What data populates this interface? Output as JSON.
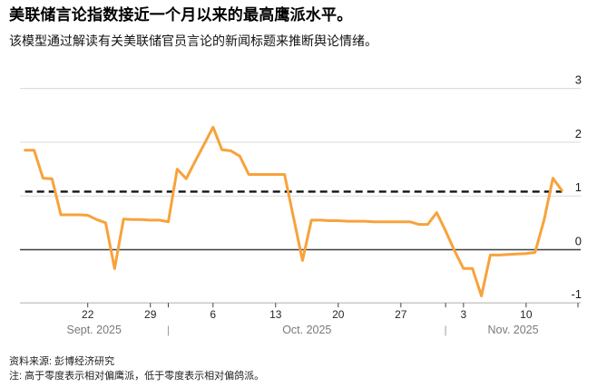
{
  "header": {
    "title": "美联储言论指数接近一个月以来的最高鹰派水平。",
    "subtitle": "该模型通过解读有关美联储官员言论的新闻标题来推断舆论情绪。"
  },
  "footer": {
    "source": "资料来源: 彭博经济研究",
    "note": "注: 高于零度表示相对偏鹰派，低于零度表示相对偏鸽派。"
  },
  "chart_data": {
    "type": "line",
    "title": "美联储言论指数接近一个月以来的最高鹰派水平。",
    "subtitle": "该模型通过解读有关美联储官员言论的新闻标题来推断舆论情绪。",
    "ylim": [
      -1,
      3
    ],
    "y_ticks": [
      3,
      2,
      1,
      0,
      -1
    ],
    "grid": true,
    "zero_line": true,
    "dashed_reference_value": 1.08,
    "start_date": "2025-09-15",
    "end_date": "2025-11-14",
    "frequency": "daily",
    "series": [
      {
        "name": "美联储言论指数",
        "dates": [
          "2025-09-15",
          "2025-09-16",
          "2025-09-17",
          "2025-09-18",
          "2025-09-19",
          "2025-09-20",
          "2025-09-21",
          "2025-09-22",
          "2025-09-23",
          "2025-09-24",
          "2025-09-25",
          "2025-09-26",
          "2025-09-27",
          "2025-09-28",
          "2025-09-29",
          "2025-09-30",
          "2025-10-01",
          "2025-10-02",
          "2025-10-03",
          "2025-10-04",
          "2025-10-05",
          "2025-10-06",
          "2025-10-07",
          "2025-10-08",
          "2025-10-09",
          "2025-10-10",
          "2025-10-11",
          "2025-10-12",
          "2025-10-13",
          "2025-10-14",
          "2025-10-15",
          "2025-10-16",
          "2025-10-17",
          "2025-10-18",
          "2025-10-19",
          "2025-10-20",
          "2025-10-21",
          "2025-10-22",
          "2025-10-23",
          "2025-10-24",
          "2025-10-25",
          "2025-10-26",
          "2025-10-27",
          "2025-10-28",
          "2025-10-29",
          "2025-10-30",
          "2025-10-31",
          "2025-11-01",
          "2025-11-02",
          "2025-11-03",
          "2025-11-04",
          "2025-11-05",
          "2025-11-06",
          "2025-11-07",
          "2025-11-08",
          "2025-11-09",
          "2025-11-10",
          "2025-11-11",
          "2025-11-12",
          "2025-11-13",
          "2025-11-14"
        ],
        "values": [
          1.85,
          1.85,
          1.33,
          1.32,
          0.65,
          0.65,
          0.65,
          0.64,
          0.56,
          0.5,
          -0.35,
          0.57,
          0.56,
          0.56,
          0.55,
          0.55,
          0.52,
          1.5,
          1.32,
          1.64,
          1.96,
          2.28,
          1.86,
          1.84,
          1.74,
          1.4,
          1.4,
          1.4,
          1.4,
          1.4,
          0.6,
          -0.2,
          0.55,
          0.55,
          0.54,
          0.54,
          0.53,
          0.53,
          0.53,
          0.52,
          0.52,
          0.52,
          0.52,
          0.52,
          0.47,
          0.47,
          0.69,
          0.35,
          -0.02,
          -0.35,
          -0.35,
          -0.86,
          -0.1,
          -0.1,
          -0.09,
          -0.08,
          -0.07,
          -0.05,
          0.55,
          1.33,
          1.1
        ]
      }
    ],
    "x_axis": {
      "tick_labels": [
        "22",
        "29",
        "6",
        "13",
        "20",
        "27",
        "3",
        "10"
      ],
      "tick_day_offsets": [
        7,
        14,
        21,
        28,
        35,
        42,
        49,
        56
      ],
      "month_labels": [
        "Sept. 2025",
        "Oct. 2025",
        "Nov. 2025"
      ],
      "month_separator_glyph": "|",
      "month_separator_day_offsets": [
        16,
        47
      ]
    },
    "colors": {
      "line": "#F8A23B",
      "grid": "#D9D9D9",
      "zero_line": "#3F3F3F",
      "dashed": "#121212",
      "axis": "#C9C9C9",
      "day_label": "#262626",
      "month_label": "#7A7A7A",
      "y_label": "#1A1A1A"
    }
  }
}
